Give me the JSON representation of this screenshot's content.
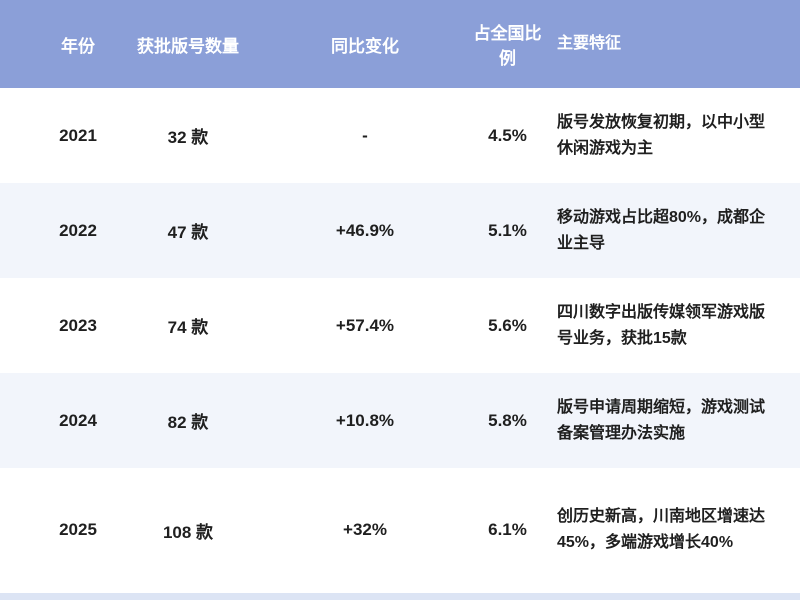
{
  "colors": {
    "header_bg": "#8B9FD8",
    "header_text": "#FFFFFF",
    "row_bg": "#FFFFFF",
    "row_alt_bg": "#F2F5FB",
    "text": "#1F1F1F",
    "bottom_strip": "#DCE4F4"
  },
  "table": {
    "headers": [
      "年份",
      "获批版号数量",
      "同比变化",
      "占全国比例",
      "主要特征"
    ],
    "rows": [
      {
        "year": "2021",
        "count": "32 款",
        "change": "-",
        "share": "4.5%",
        "feature": "版号发放恢复初期，以中小型休闲游戏为主"
      },
      {
        "year": "2022",
        "count": "47 款",
        "change": "+46.9%",
        "share": "5.1%",
        "feature": "移动游戏占比超80%，成都企业主导"
      },
      {
        "year": "2023",
        "count": "74 款",
        "change": "+57.4%",
        "share": "5.6%",
        "feature": "四川数字出版传媒领军游戏版号业务，获批15款"
      },
      {
        "year": "2024",
        "count": "82 款",
        "change": "+10.8%",
        "share": "5.8%",
        "feature": "版号申请周期缩短，游戏测试备案管理办法实施"
      },
      {
        "year": "2025",
        "count": "108 款",
        "change": "+32%",
        "share": "6.1%",
        "feature": "创历史新高，川南地区增速达45%，多端游戏增长40%"
      }
    ]
  },
  "chart_data": {
    "type": "table",
    "columns": [
      "年份",
      "获批版号数量",
      "同比变化",
      "占全国比例",
      "主要特征"
    ],
    "rows": [
      [
        "2021",
        "32 款",
        "-",
        "4.5%",
        "版号发放恢复初期，以中小型休闲游戏为主"
      ],
      [
        "2022",
        "47 款",
        "+46.9%",
        "5.1%",
        "移动游戏占比超80%，成都企业主导"
      ],
      [
        "2023",
        "74 款",
        "+57.4%",
        "5.6%",
        "四川数字出版传媒领军游戏版号业务，获批15款"
      ],
      [
        "2024",
        "82 款",
        "+10.8%",
        "5.8%",
        "版号申请周期缩短，游戏测试备案管理办法实施"
      ],
      [
        "2025",
        "108 款",
        "+32%",
        "6.1%",
        "创历史新高，川南地区增速达45%，多端游戏增长40%"
      ]
    ]
  }
}
